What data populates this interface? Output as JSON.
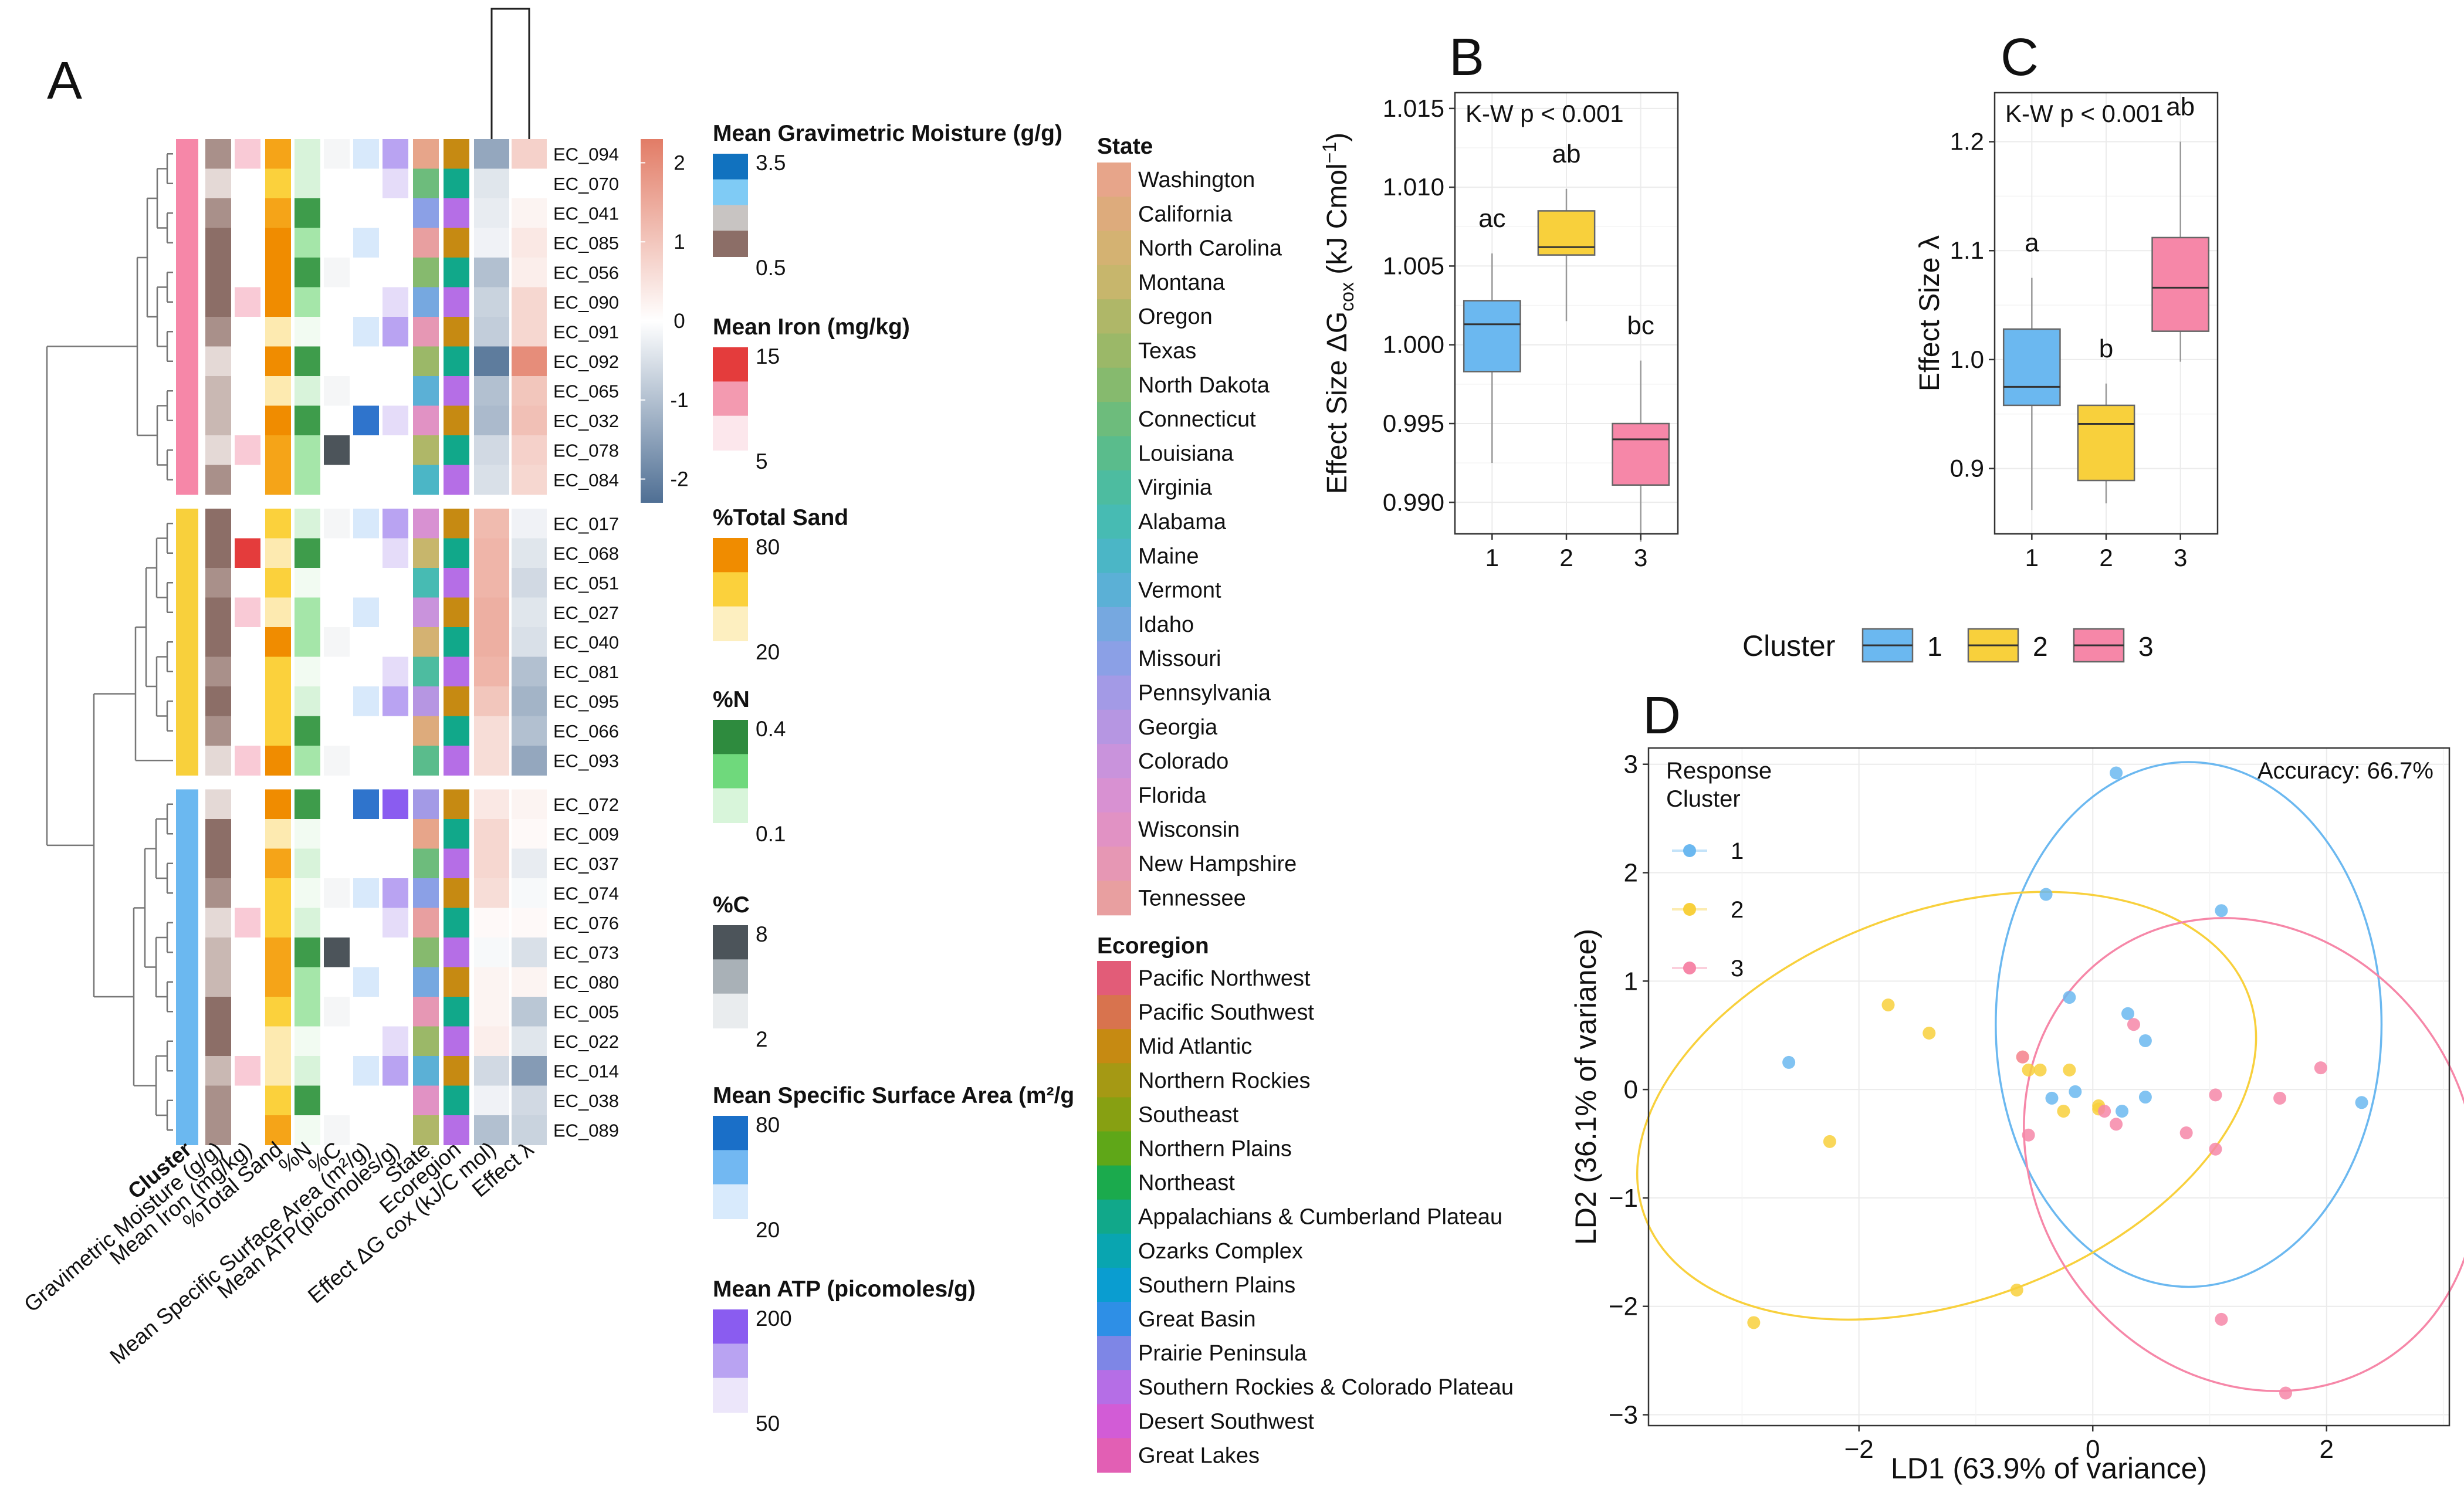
{
  "panels": {
    "a": "A",
    "b": "B",
    "c": "C",
    "d": "D"
  },
  "chart_data": [
    {
      "panel": "A",
      "type": "heatmap",
      "rows": [
        "EC_094",
        "EC_070",
        "EC_041",
        "EC_085",
        "EC_056",
        "EC_090",
        "EC_091",
        "EC_092",
        "EC_065",
        "EC_032",
        "EC_078",
        "EC_084",
        "EC_017",
        "EC_068",
        "EC_051",
        "EC_027",
        "EC_040",
        "EC_081",
        "EC_095",
        "EC_066",
        "EC_093",
        "EC_072",
        "EC_009",
        "EC_037",
        "EC_074",
        "EC_076",
        "EC_073",
        "EC_080",
        "EC_005",
        "EC_022",
        "EC_014",
        "EC_038",
        "EC_089"
      ],
      "row_cluster": [
        3,
        3,
        3,
        3,
        3,
        3,
        3,
        3,
        3,
        3,
        3,
        3,
        2,
        2,
        2,
        2,
        2,
        2,
        2,
        2,
        2,
        1,
        1,
        1,
        1,
        1,
        1,
        1,
        1,
        1,
        1,
        1,
        1
      ],
      "columns": [
        "Cluster",
        "Gravimetric Moisture (g/g)",
        "Mean Iron (mg/kg)",
        "%Total Sand",
        "%N",
        "%C",
        "Mean Specific Surface Area (m²/g)",
        "Mean ATP(picomoles/g)",
        "State",
        "Ecoregion",
        "Effect ΔG cox (kJ/C mol)",
        "Effect λ"
      ],
      "effect_dg": [
        -1.4,
        -0.4,
        -0.3,
        -0.2,
        -1.0,
        -0.7,
        -0.8,
        -2.1,
        -1.0,
        -1.1,
        -0.6,
        -0.5,
        1.2,
        1.3,
        1.3,
        1.4,
        1.4,
        1.3,
        1.0,
        0.6,
        0.6,
        0.4,
        0.7,
        0.7,
        0.6,
        0.1,
        -0.1,
        0.2,
        0.2,
        0.3,
        -0.6,
        -0.2,
        -1.0
      ],
      "effect_lambda": [
        0.8,
        0.0,
        0.2,
        0.4,
        0.3,
        0.7,
        0.7,
        2.0,
        1.0,
        1.1,
        0.8,
        0.7,
        -0.2,
        -0.4,
        -0.6,
        -0.4,
        -0.5,
        -1.0,
        -1.2,
        -1.0,
        -1.4,
        0.2,
        0.1,
        -0.3,
        -0.1,
        0.1,
        -0.5,
        0.2,
        -0.9,
        -0.4,
        -1.6,
        -0.6,
        -0.7
      ],
      "colorbar_ticks": [
        2,
        1,
        0,
        -1,
        -2
      ]
    },
    {
      "panel": "B",
      "type": "box",
      "categories": [
        "1",
        "2",
        "3"
      ],
      "ylabel_main": "Effect Size ΔG",
      "ylabel_sub": "cox",
      "ylabel_unit": " (kJ Cmol",
      "ylabel_sup": "−1",
      "ylabel_close": ")",
      "ylim": [
        0.988,
        1.016
      ],
      "yticks": [
        0.99,
        0.995,
        1.0,
        1.005,
        1.01,
        1.015
      ],
      "ytick_labels": [
        "0.990",
        "0.995",
        "1.000",
        "1.005",
        "1.010",
        "1.015"
      ],
      "boxes": [
        {
          "min": 0.9925,
          "q1": 0.9983,
          "median": 1.0013,
          "q3": 1.0028,
          "max": 1.0058,
          "letters": "ac"
        },
        {
          "min": 1.0015,
          "q1": 1.0057,
          "median": 1.0062,
          "q3": 1.0085,
          "max": 1.0099,
          "letters": "ab"
        },
        {
          "min": 0.9875,
          "q1": 0.9911,
          "median": 0.994,
          "q3": 0.995,
          "max": 0.999,
          "letters": "bc"
        }
      ],
      "annotation": "K-W p < 0.001"
    },
    {
      "panel": "C",
      "type": "box",
      "categories": [
        "1",
        "2",
        "3"
      ],
      "ylabel": "Effect Size λ",
      "ylim": [
        0.84,
        1.245
      ],
      "yticks": [
        0.9,
        1.0,
        1.1,
        1.2
      ],
      "ytick_labels": [
        "0.9",
        "1.0",
        "1.1",
        "1.2"
      ],
      "boxes": [
        {
          "min": 0.862,
          "q1": 0.958,
          "median": 0.975,
          "q3": 1.028,
          "max": 1.075,
          "letters": "a"
        },
        {
          "min": 0.868,
          "q1": 0.889,
          "median": 0.941,
          "q3": 0.958,
          "max": 0.978,
          "letters": "b"
        },
        {
          "min": 0.998,
          "q1": 1.026,
          "median": 1.066,
          "q3": 1.112,
          "max": 1.2,
          "letters": "ab"
        }
      ],
      "annotation": "K-W p < 0.001"
    },
    {
      "panel": "D",
      "type": "scatter",
      "xlabel": "LD1 (63.9% of variance)",
      "ylabel": "LD2 (36.1% of variance)",
      "xlim": [
        -3.8,
        3.05
      ],
      "ylim": [
        -3.1,
        3.15
      ],
      "xticks": [
        -2,
        0,
        2
      ],
      "xtick_labels": [
        "−2",
        "0",
        "2"
      ],
      "yticks": [
        -3,
        -2,
        -1,
        0,
        1,
        2,
        3
      ],
      "ytick_labels": [
        "−3",
        "−2",
        "−1",
        "0",
        "1",
        "2",
        "3"
      ],
      "annotation": "Accuracy: 66.7%",
      "legend_title": [
        "Response",
        "Cluster"
      ],
      "series": [
        {
          "name": "1",
          "points": [
            [
              0.2,
              2.92
            ],
            [
              -0.4,
              1.8
            ],
            [
              1.1,
              1.65
            ],
            [
              -0.2,
              0.85
            ],
            [
              0.45,
              0.45
            ],
            [
              0.3,
              0.7
            ],
            [
              -2.6,
              0.25
            ],
            [
              -0.35,
              -0.08
            ],
            [
              -0.15,
              -0.02
            ],
            [
              0.45,
              -0.07
            ],
            [
              0.25,
              -0.2
            ],
            [
              2.3,
              -0.12
            ]
          ]
        },
        {
          "name": "2",
          "points": [
            [
              -1.75,
              0.78
            ],
            [
              -1.4,
              0.52
            ],
            [
              -0.6,
              0.3
            ],
            [
              -0.55,
              0.18
            ],
            [
              -0.45,
              0.18
            ],
            [
              -0.2,
              0.18
            ],
            [
              -0.25,
              -0.2
            ],
            [
              0.05,
              -0.15
            ],
            [
              -2.25,
              -0.48
            ],
            [
              -2.9,
              -2.15
            ],
            [
              -0.65,
              -1.85
            ],
            [
              0.05,
              -0.18
            ]
          ]
        },
        {
          "name": "3",
          "points": [
            [
              -0.6,
              0.3
            ],
            [
              0.35,
              0.6
            ],
            [
              1.05,
              -0.05
            ],
            [
              1.6,
              -0.08
            ],
            [
              1.95,
              0.2
            ],
            [
              -0.55,
              -0.42
            ],
            [
              0.2,
              -0.32
            ],
            [
              0.8,
              -0.4
            ],
            [
              1.05,
              -0.55
            ],
            [
              1.1,
              -2.12
            ],
            [
              1.65,
              -2.8
            ],
            [
              0.1,
              -0.2
            ]
          ]
        }
      ],
      "ellipses": [
        {
          "cluster": "1",
          "cx": 0.82,
          "cy": 0.6,
          "rx": 1.65,
          "ry": 2.42,
          "angle": 0
        },
        {
          "cluster": "2",
          "cx": -1.25,
          "cy": -0.15,
          "rx": 2.75,
          "ry": 1.8,
          "angle": 20
        },
        {
          "cluster": "3",
          "cx": 1.35,
          "cy": -0.6,
          "rx": 2.1,
          "ry": 2.0,
          "angle": -55
        }
      ]
    }
  ],
  "box_legend": {
    "title": "Cluster",
    "items": [
      "1",
      "2",
      "3"
    ]
  },
  "legends": {
    "moisture": {
      "title": "Mean Gravimetric Moisture (g/g)",
      "labels": [
        "3.5",
        "0.5"
      ]
    },
    "iron": {
      "title": "Mean Iron (mg/kg)",
      "labels": [
        "15",
        "5"
      ]
    },
    "sand": {
      "title": "%Total Sand",
      "labels": [
        "80",
        "20"
      ]
    },
    "n": {
      "title": "%N",
      "labels": [
        "0.4",
        "0.1"
      ]
    },
    "c": {
      "title": "%C",
      "labels": [
        "8",
        "2"
      ]
    },
    "ssa": {
      "title": "Mean Specific Surface Area (m²/g",
      "labels": [
        "80",
        "20"
      ]
    },
    "atp": {
      "title": "Mean ATP (picomoles/g)",
      "labels": [
        "200",
        "50"
      ]
    },
    "state": {
      "title": "State",
      "items": [
        "Washington",
        "California",
        "North Carolina",
        "Montana",
        "Oregon",
        "Texas",
        "North Dakota",
        "Connecticut",
        "Louisiana",
        "Virginia",
        "Alabama",
        "Maine",
        "Vermont",
        "Idaho",
        "Missouri",
        "Pennsylvania",
        "Georgia",
        "Colorado",
        "Florida",
        "Wisconsin",
        "New Hampshire",
        "Tennessee"
      ]
    },
    "ecoregion": {
      "title": "Ecoregion",
      "items": [
        "Pacific Northwest",
        "Pacific Southwest",
        "Mid Atlantic",
        "Northern Rockies",
        "Southeast",
        "Northern Plains",
        "Northeast",
        "Appalachians & Cumberland Plateau",
        "Ozarks Complex",
        "Southern Plains",
        "Great Basin",
        "Prairie Peninsula",
        "Southern Rockies & Colorado Plateau",
        "Desert Southwest",
        "Great Lakes"
      ]
    }
  },
  "colors": {
    "cluster1": "#6BB8F0",
    "cluster2": "#F8D03C",
    "cluster3": "#F687A8",
    "neg": "#4F6F94",
    "pos": "#E27C66",
    "state": [
      "#E7A58A",
      "#DDAB7C",
      "#D4B272",
      "#C7B66C",
      "#AFB768",
      "#9BB868",
      "#86BA6E",
      "#6DBC7C",
      "#5ABC8C",
      "#4DBCA0",
      "#47BBB3",
      "#4BB6C6",
      "#5BB0D6",
      "#76A8E0",
      "#8BA0E6",
      "#A39AE6",
      "#B696E2",
      "#C993DC",
      "#D891D2",
      "#E192C4",
      "#E697B4",
      "#E89FA0"
    ],
    "ecoregion": [
      "#E25C78",
      "#D8734E",
      "#C68A12",
      "#A59914",
      "#87A012",
      "#5FA718",
      "#1BAA4D",
      "#11A88A",
      "#09A5B0",
      "#0A9DD0",
      "#2E8FE6",
      "#7E86E6",
      "#B56EE6",
      "#D25CD6",
      "#E25FB4"
    ]
  }
}
